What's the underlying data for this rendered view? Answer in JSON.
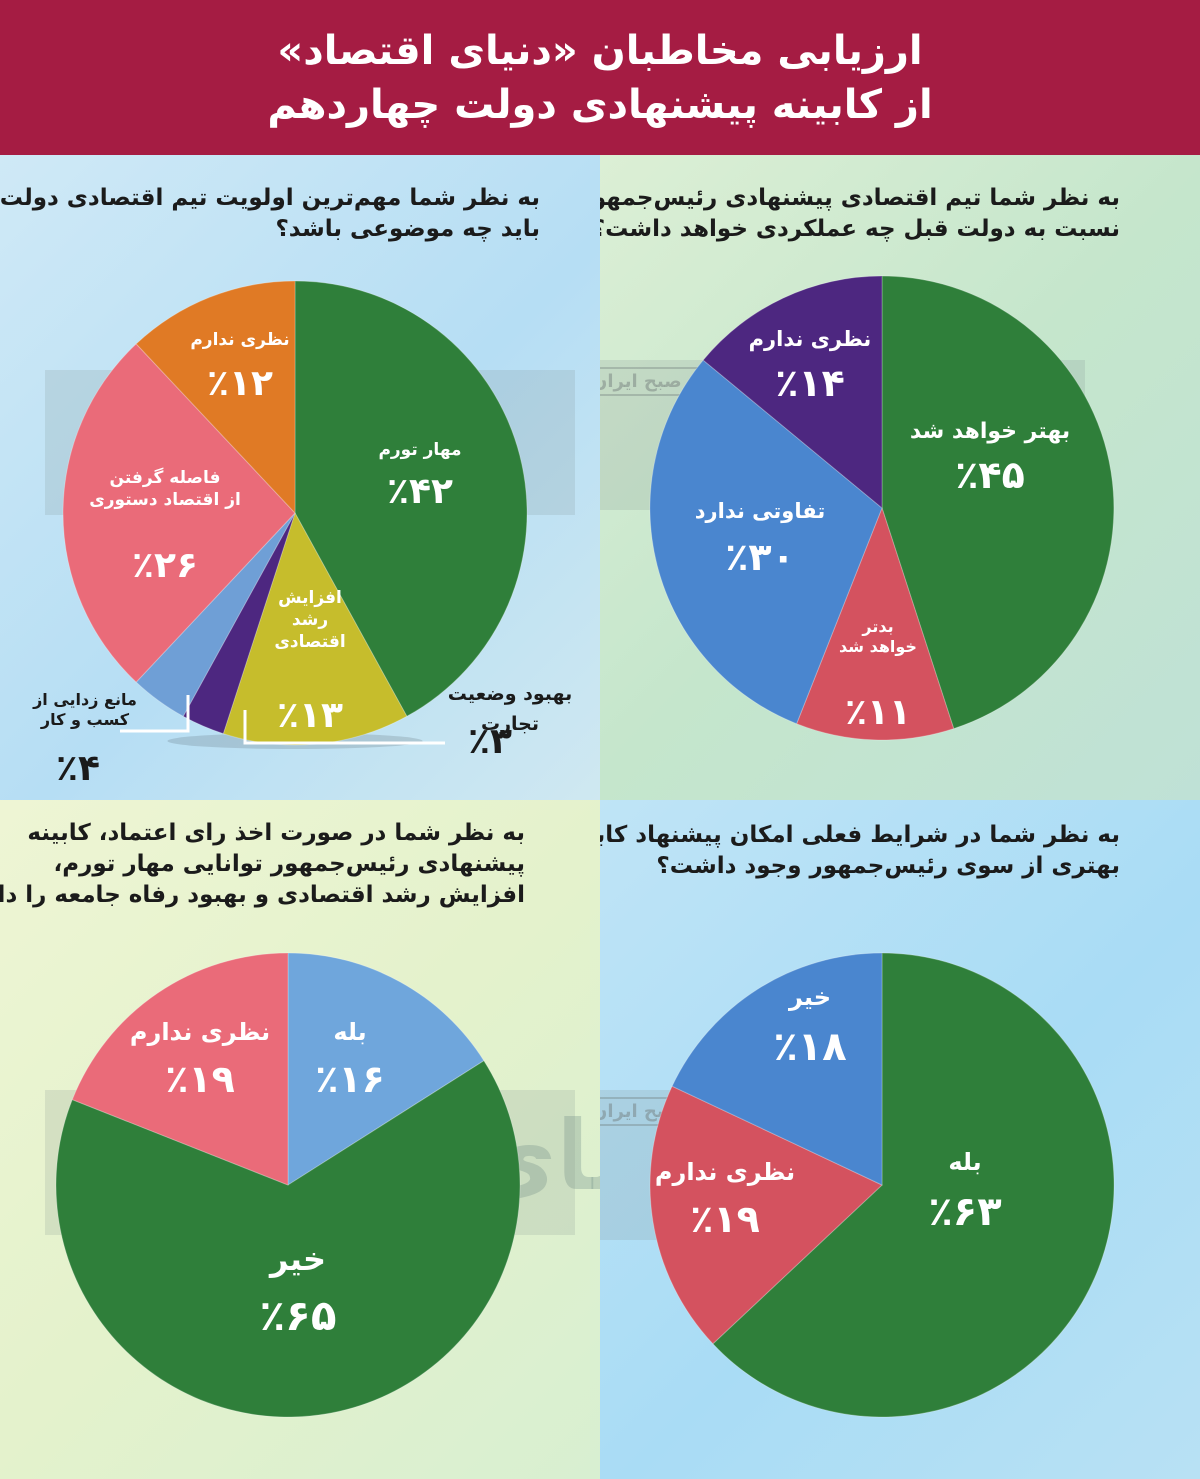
{
  "header": {
    "title_line1": "ارزیابی مخاطبان «دنیای اقتصاد»",
    "title_line2": "از کابینه پیشنهادی دولت چهاردهم"
  },
  "watermark": {
    "brand": "دنیای اقتصاد",
    "newspaper": "روزنامه صبح ایران"
  },
  "chart_data": [
    {
      "type": "pie",
      "title_lines": [
        "به نظر شما مهم‌ترین اولویت تیم اقتصادی دولت",
        "باید چه موضوعی باشد؟"
      ],
      "slices": [
        {
          "label": "مهار تورم",
          "value": 42,
          "display": "٪۴۲",
          "color": "#2f7f3a"
        },
        {
          "label": "افزایش رشد اقتصادی",
          "label_lines": [
            "افزایش",
            "رشد",
            "اقتصادی"
          ],
          "value": 13,
          "display": "٪۱۳",
          "color": "#c6bd2c"
        },
        {
          "label": "بهبود وضعیت تجارت",
          "label_lines": [
            "بهبود وضعیت",
            "تجارت"
          ],
          "value": 3,
          "display": "٪۳",
          "color": "#4d2780"
        },
        {
          "label": "مانع زدایی از کسب و کار",
          "label_lines": [
            "مانع زدایی از",
            "کسب و کار"
          ],
          "value": 4,
          "display": "٪۴",
          "color": "#6f9fd6"
        },
        {
          "label": "فاصله گرفتن از اقتصاد دستوری",
          "label_lines": [
            "فاصله گرفتن",
            "از اقتصاد دستوری"
          ],
          "value": 26,
          "display": "٪۲۶",
          "color": "#ea6b79"
        },
        {
          "label": "نظری ندارم",
          "value": 12,
          "display": "٪۱۲",
          "color": "#e07a25"
        }
      ]
    },
    {
      "type": "pie",
      "title_lines": [
        "به نظر شما تیم اقتصادی پیشنهادی رئیس‌جمهور",
        "نسبت به دولت قبل چه عملکردی خواهد داشت؟"
      ],
      "slices": [
        {
          "label": "بهتر خواهد شد",
          "value": 45,
          "display": "٪۴۵",
          "color": "#2f7f3a"
        },
        {
          "label": "بدتر خواهد شد",
          "label_lines": [
            "بدتر",
            "خواهد شد"
          ],
          "value": 11,
          "display": "٪۱۱",
          "color": "#d4525f"
        },
        {
          "label": "تفاوتی ندارد",
          "value": 30,
          "display": "٪۳۰",
          "color": "#4a86cf"
        },
        {
          "label": "نظری ندارم",
          "value": 14,
          "display": "٪۱۴",
          "color": "#4d2780"
        }
      ]
    },
    {
      "type": "pie",
      "title_lines": [
        "به نظر شما در صورت اخذ رای اعتماد، کابینه",
        "پیشنهادی رئیس‌جمهور توانایی مهار تورم،",
        "افزایش رشد اقتصادی و بهبود رفاه جامعه را دارد؟"
      ],
      "slices": [
        {
          "label": "بله",
          "value": 16,
          "display": "٪۱۶",
          "color": "#6fa6dc"
        },
        {
          "label": "خیر",
          "value": 65,
          "display": "٪۶۵",
          "color": "#2f7f3a"
        },
        {
          "label": "نظری ندارم",
          "value": 19,
          "display": "٪۱۹",
          "color": "#ea6b79"
        }
      ]
    },
    {
      "type": "pie",
      "title_lines": [
        "به نظر شما در شرایط فعلی امکان پیشنهاد کابینه",
        "بهتری از سوی رئیس‌جمهور وجود داشت؟"
      ],
      "slices": [
        {
          "label": "بله",
          "value": 63,
          "display": "٪۶۳",
          "color": "#2f7f3a"
        },
        {
          "label": "نظری ندارم",
          "value": 19,
          "display": "٪۱۹",
          "color": "#d4525f"
        },
        {
          "label": "خیر",
          "value": 18,
          "display": "٪۱۸",
          "color": "#4a86cf"
        }
      ]
    }
  ]
}
